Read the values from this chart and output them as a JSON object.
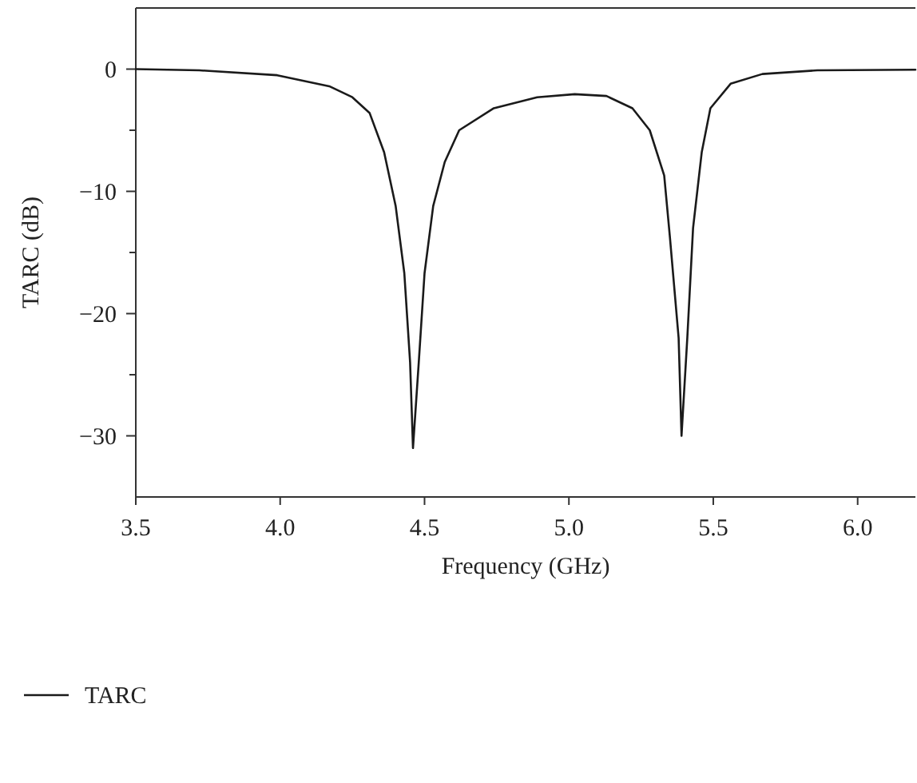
{
  "chart_data": {
    "type": "line",
    "xlabel": "Frequency (GHz)",
    "ylabel": "TARC (dB)",
    "xlim": [
      3.5,
      6.2
    ],
    "xticks": [
      {
        "value": 3.5,
        "label": "3.5"
      },
      {
        "value": 4.0,
        "label": "4.0"
      },
      {
        "value": 4.5,
        "label": "4.5"
      },
      {
        "value": 5.0,
        "label": "5.0"
      },
      {
        "value": 5.5,
        "label": "5.5"
      },
      {
        "value": 6.0,
        "label": "6.0"
      }
    ],
    "ylim": [
      -35,
      5
    ],
    "yticks": [
      {
        "value": -30,
        "label": "−30"
      },
      {
        "value": -25,
        "label": null
      },
      {
        "value": -20,
        "label": "−20"
      },
      {
        "value": -15,
        "label": null
      },
      {
        "value": -10,
        "label": "−10"
      },
      {
        "value": -5,
        "label": null
      },
      {
        "value": 0,
        "label": "0"
      }
    ],
    "legend": "bottom left",
    "grid": false,
    "line_style": "solid",
    "marker": "none",
    "series": [
      {
        "name": "TARC",
        "color": "#1a1a1a",
        "x": [
          3.5,
          3.72,
          3.99,
          4.17,
          4.25,
          4.31,
          4.36,
          4.4,
          4.43,
          4.45,
          4.46,
          4.48,
          4.5,
          4.53,
          4.57,
          4.62,
          4.74,
          4.89,
          5.02,
          5.13,
          5.22,
          5.28,
          5.33,
          5.35,
          5.38,
          5.39,
          5.41,
          5.43,
          5.46,
          5.49,
          5.56,
          5.67,
          5.86,
          6.2
        ],
        "values": [
          0,
          -0.1,
          -0.5,
          -1.4,
          -2.3,
          -3.6,
          -6.8,
          -11.2,
          -16.7,
          -24,
          -31,
          -24,
          -16.7,
          -11.2,
          -7.6,
          -5,
          -3.2,
          -2.3,
          -2.05,
          -2.2,
          -3.2,
          -5,
          -8.7,
          -13.8,
          -22,
          -30,
          -22,
          -13,
          -6.8,
          -3.2,
          -1.2,
          -0.4,
          -0.1,
          -0.05
        ]
      }
    ]
  }
}
